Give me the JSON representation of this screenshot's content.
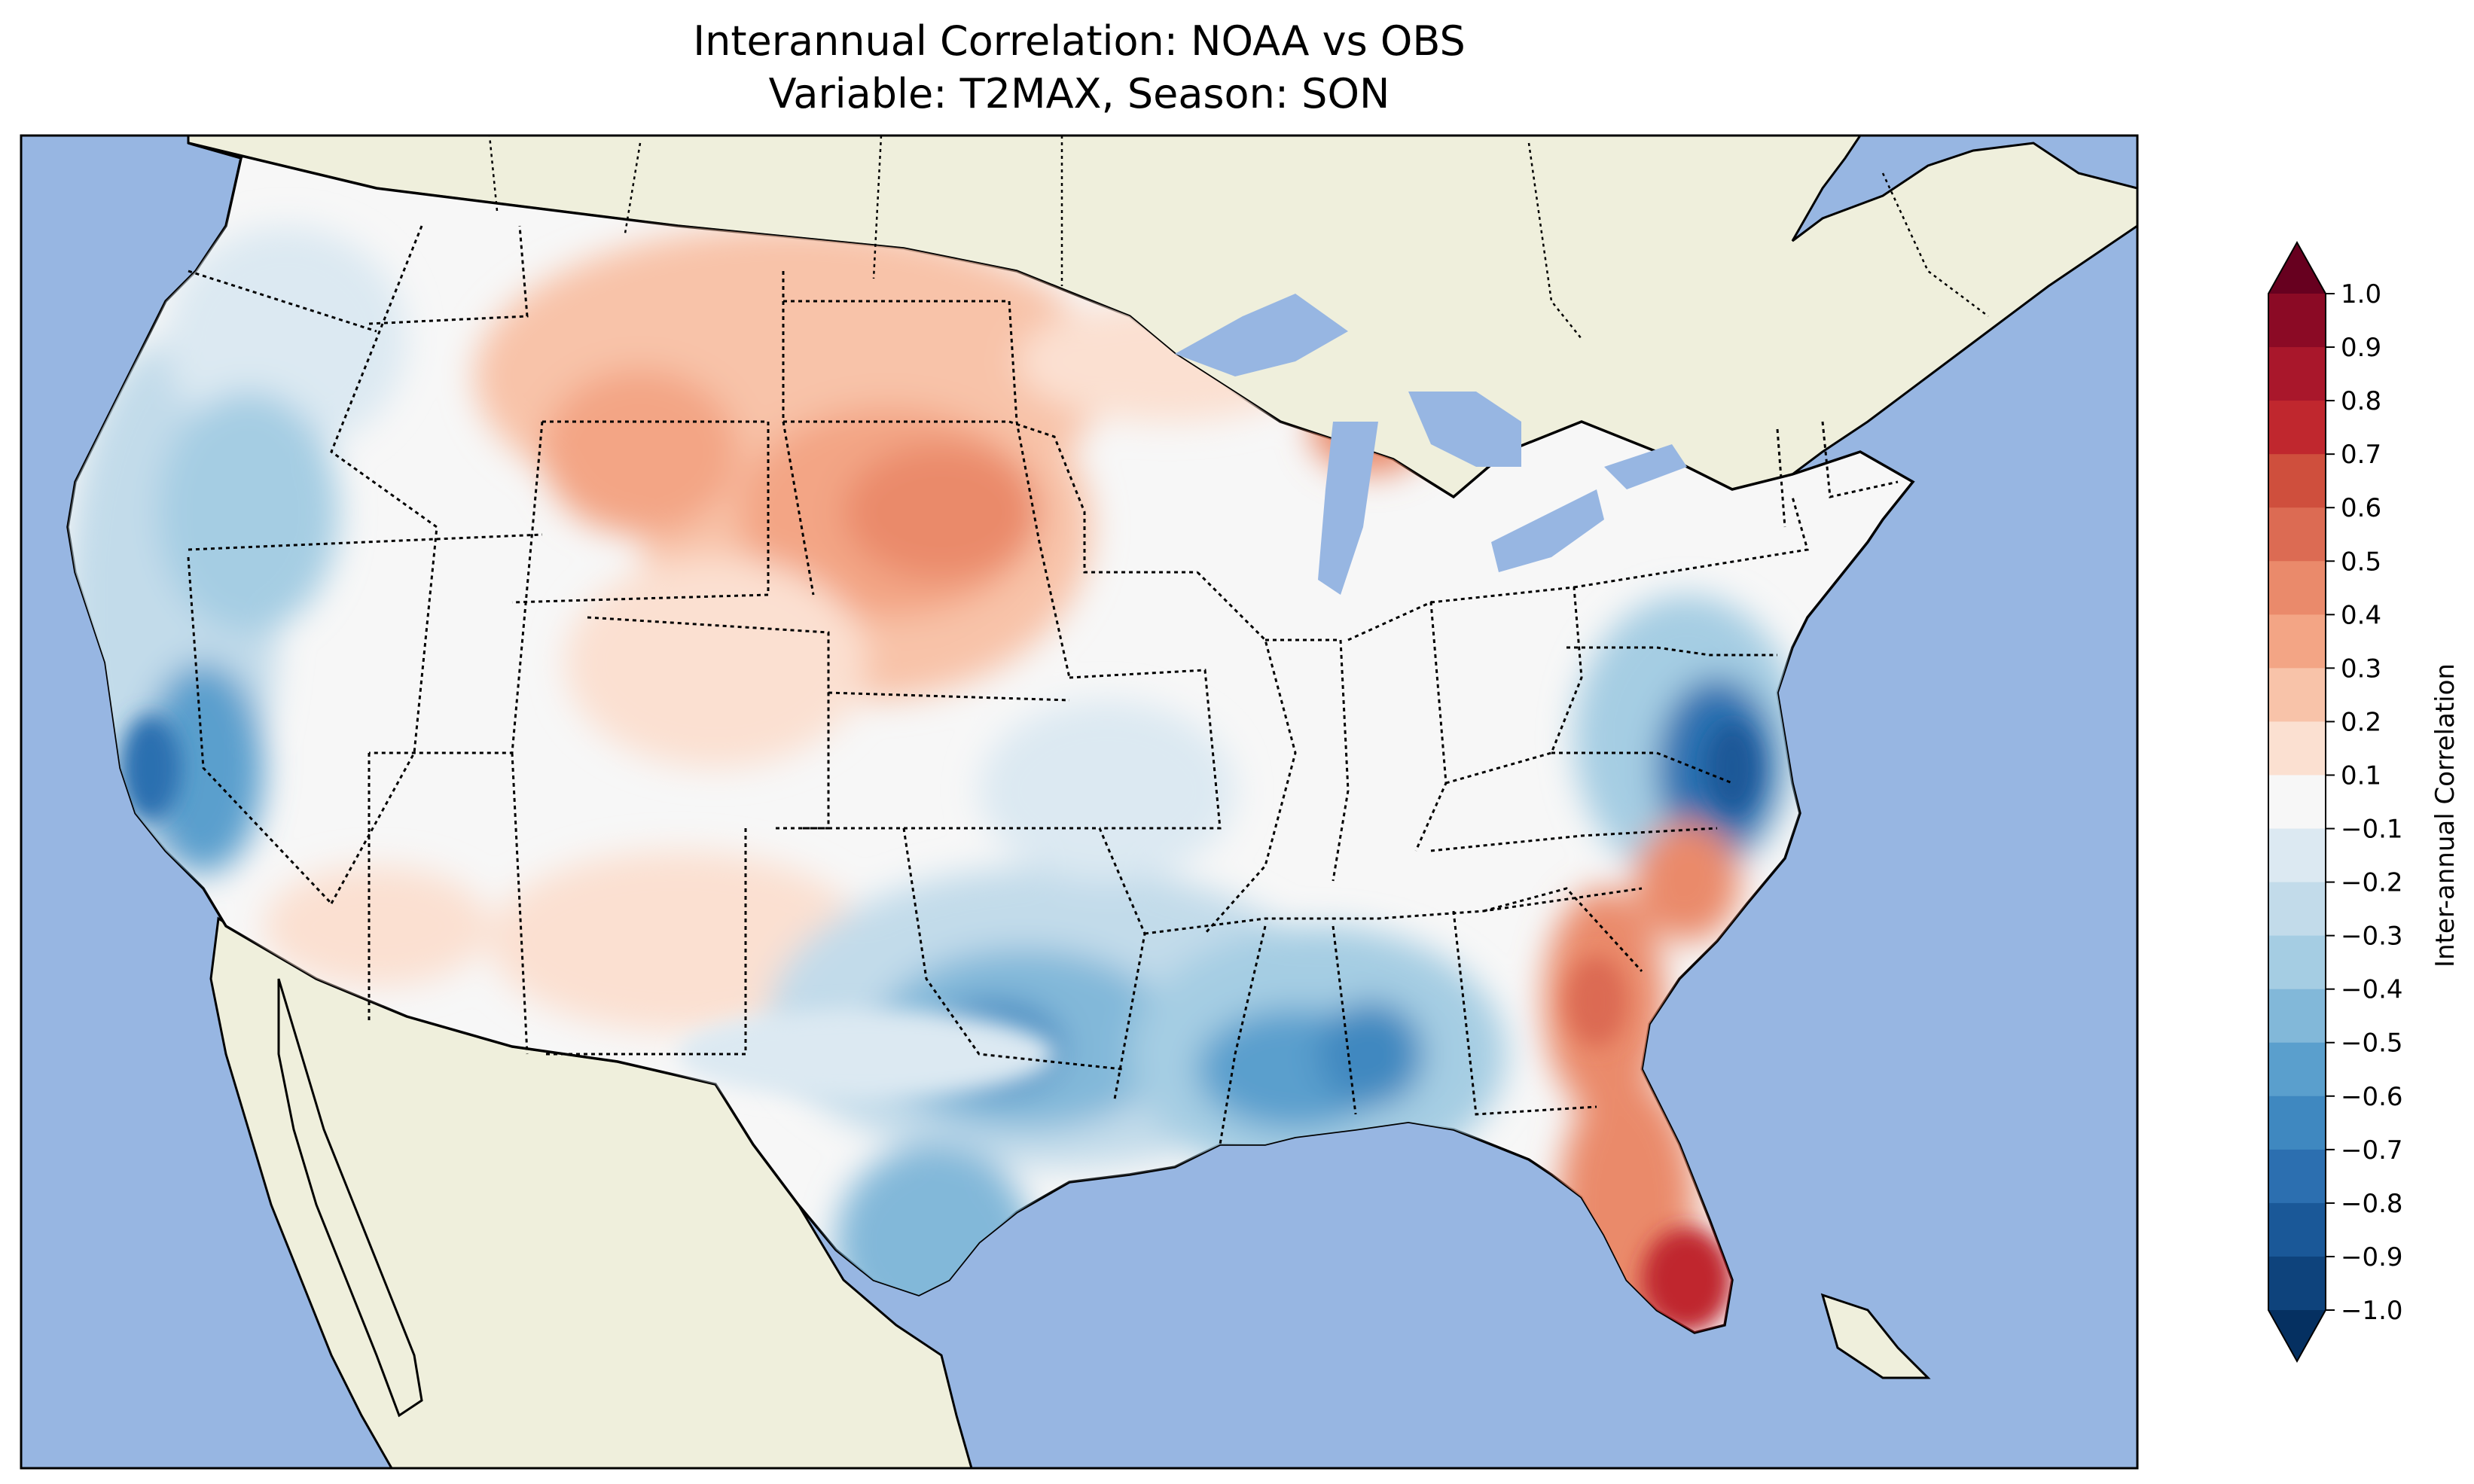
{
  "title": {
    "line1": "Interannual Correlation: NOAA vs OBS",
    "line2": "Variable: T2MAX, Season: SON"
  },
  "colors": {
    "ocean": "#97b6e2",
    "land": "#efefdc",
    "neutral": "#f7f7f7"
  },
  "colorbar": {
    "label": "Inter-annual Correlation",
    "ticks": [
      "1.0",
      "0.9",
      "0.8",
      "0.7",
      "0.6",
      "0.5",
      "0.4",
      "0.3",
      "0.2",
      "0.1",
      "−0.1",
      "−0.2",
      "−0.3",
      "−0.4",
      "−0.5",
      "−0.6",
      "−0.7",
      "−0.8",
      "−0.9",
      "−1.0"
    ],
    "colors": [
      "#67001f",
      "#8b0a25",
      "#a9172b",
      "#c0272e",
      "#cf4f3d",
      "#dc6b53",
      "#ea8a6b",
      "#f3a585",
      "#f8c3a9",
      "#fbe0d1",
      "#f7f7f7",
      "#dce9f2",
      "#c2dbea",
      "#a5cde3",
      "#82b8d9",
      "#5a9fcd",
      "#3f88c0",
      "#2c6fb0",
      "#1a5898",
      "#0e437c",
      "#053061"
    ],
    "extend": "both"
  },
  "regions": [
    {
      "name": "northern-plains-positive",
      "value": 0.3
    },
    {
      "name": "dakotas-core",
      "value": 0.4
    },
    {
      "name": "florida-positive",
      "value": 0.6
    },
    {
      "name": "georgia-carolina-positive",
      "value": 0.4
    },
    {
      "name": "michigan-upper",
      "value": 0.4
    },
    {
      "name": "southwest-positive",
      "value": 0.2
    },
    {
      "name": "west-coast-negative",
      "value": -0.4
    },
    {
      "name": "california-core",
      "value": -0.7
    },
    {
      "name": "texas-gulf-negative",
      "value": -0.4
    },
    {
      "name": "louisiana-mississippi-core",
      "value": -0.6
    },
    {
      "name": "south-texas",
      "value": -0.5
    },
    {
      "name": "virginia-negative",
      "value": -0.7
    },
    {
      "name": "kansas-missouri-negative",
      "value": -0.2
    }
  ]
}
